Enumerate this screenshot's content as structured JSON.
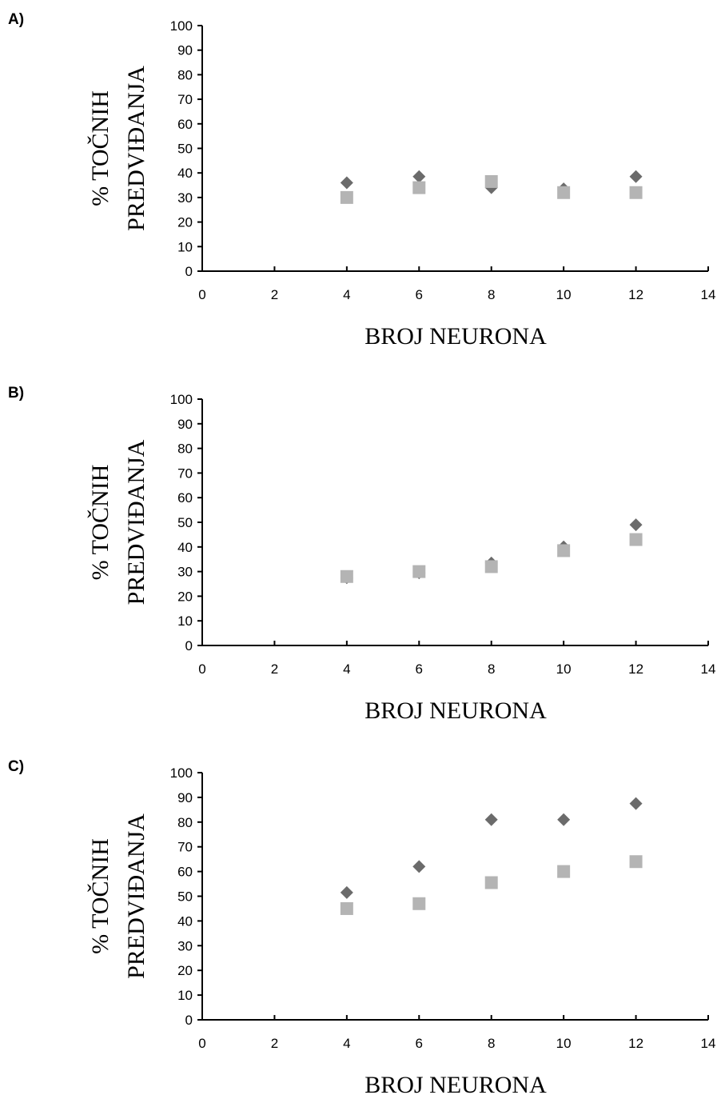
{
  "figure": {
    "panels": [
      {
        "label": "A)"
      },
      {
        "label": "B)"
      },
      {
        "label": "C)"
      }
    ]
  },
  "chart_data": [
    {
      "type": "scatter",
      "panel": "A)",
      "xlabel": "BROJ NEURONA",
      "ylabel_lines": [
        "% TOČNIH",
        "PREDVIĐANJA"
      ],
      "xlim": [
        0,
        14
      ],
      "ylim": [
        0,
        100
      ],
      "x_ticks": [
        0,
        2,
        4,
        6,
        8,
        10,
        12,
        14
      ],
      "y_ticks": [
        0,
        10,
        20,
        30,
        40,
        50,
        60,
        70,
        80,
        90,
        100
      ],
      "grid": false,
      "legend": "none",
      "series": [
        {
          "marker": "diamond",
          "color": "#6b6b6b",
          "x": [
            4,
            6,
            8,
            10,
            12
          ],
          "y": [
            36,
            38.5,
            34,
            33.5,
            38.5
          ]
        },
        {
          "marker": "square",
          "color": "#b4b4b4",
          "x": [
            4,
            6,
            8,
            10,
            12
          ],
          "y": [
            30,
            34,
            36.5,
            32,
            32
          ]
        }
      ]
    },
    {
      "type": "scatter",
      "panel": "B)",
      "xlabel": "BROJ NEURONA",
      "ylabel_lines": [
        "% TOČNIH",
        "PREDVIĐANJA"
      ],
      "xlim": [
        0,
        14
      ],
      "ylim": [
        0,
        100
      ],
      "x_ticks": [
        0,
        2,
        4,
        6,
        8,
        10,
        12,
        14
      ],
      "y_ticks": [
        0,
        10,
        20,
        30,
        40,
        50,
        60,
        70,
        80,
        90,
        100
      ],
      "grid": false,
      "legend": "none",
      "series": [
        {
          "marker": "diamond",
          "color": "#6b6b6b",
          "x": [
            4,
            6,
            8,
            10,
            12
          ],
          "y": [
            27.5,
            29.5,
            33.5,
            40,
            49
          ]
        },
        {
          "marker": "square",
          "color": "#b4b4b4",
          "x": [
            4,
            6,
            8,
            10,
            12
          ],
          "y": [
            28,
            30,
            32,
            38.5,
            43
          ]
        }
      ]
    },
    {
      "type": "scatter",
      "panel": "C)",
      "xlabel": "BROJ NEURONA",
      "ylabel_lines": [
        "% TOČNIH",
        "PREDVIĐANJA"
      ],
      "xlim": [
        0,
        14
      ],
      "ylim": [
        0,
        100
      ],
      "x_ticks": [
        0,
        2,
        4,
        6,
        8,
        10,
        12,
        14
      ],
      "y_ticks": [
        0,
        10,
        20,
        30,
        40,
        50,
        60,
        70,
        80,
        90,
        100
      ],
      "grid": false,
      "legend": "none",
      "series": [
        {
          "marker": "diamond",
          "color": "#6b6b6b",
          "x": [
            4,
            6,
            8,
            10,
            12
          ],
          "y": [
            51.5,
            62,
            81,
            81,
            87.5
          ]
        },
        {
          "marker": "square",
          "color": "#b4b4b4",
          "x": [
            4,
            6,
            8,
            10,
            12
          ],
          "y": [
            45,
            47,
            55.5,
            60,
            64
          ]
        }
      ]
    }
  ]
}
